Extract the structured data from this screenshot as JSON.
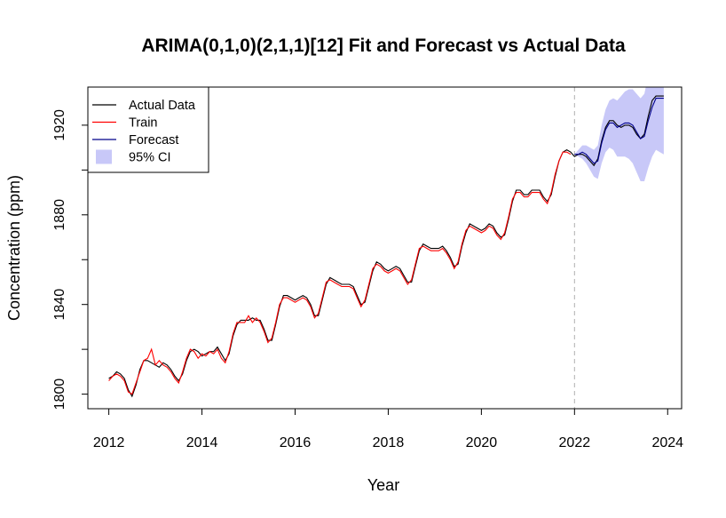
{
  "chart_data": {
    "type": "line",
    "title": "ARIMA(0,1,0)(2,1,1)[12] Fit and Forecast vs Actual Data",
    "xlabel": "Year",
    "ylabel": "Concentration (ppm)",
    "xlim": [
      2011.55,
      2024.3
    ],
    "ylim": [
      1793.5,
      1937
    ],
    "x_ticks": [
      2012,
      2014,
      2016,
      2018,
      2020,
      2022,
      2024
    ],
    "y_ticks": [
      1800,
      1840,
      1880,
      1920
    ],
    "y_minor_ticks": [
      1820,
      1860,
      1900
    ],
    "forecast_start": 2022,
    "grid": false,
    "legend_position": "top-left",
    "legend": [
      {
        "label": "Actual Data",
        "color": "#000000",
        "kind": "line"
      },
      {
        "label": "Train",
        "color": "#ff0000",
        "kind": "line"
      },
      {
        "label": "Forecast",
        "color": "#00008b",
        "kind": "line"
      },
      {
        "label": "95% CI",
        "color": "#c8c8f8",
        "kind": "fill"
      }
    ],
    "series": [
      {
        "name": "Actual Data",
        "color": "#000000",
        "x": [
          2012.0,
          2012.083,
          2012.167,
          2012.25,
          2012.333,
          2012.417,
          2012.5,
          2012.583,
          2012.667,
          2012.75,
          2012.833,
          2012.917,
          2013.0,
          2013.083,
          2013.167,
          2013.25,
          2013.333,
          2013.417,
          2013.5,
          2013.583,
          2013.667,
          2013.75,
          2013.833,
          2013.917,
          2014.0,
          2014.083,
          2014.167,
          2014.25,
          2014.333,
          2014.417,
          2014.5,
          2014.583,
          2014.667,
          2014.75,
          2014.833,
          2014.917,
          2015.0,
          2015.083,
          2015.167,
          2015.25,
          2015.333,
          2015.417,
          2015.5,
          2015.583,
          2015.667,
          2015.75,
          2015.833,
          2015.917,
          2016.0,
          2016.083,
          2016.167,
          2016.25,
          2016.333,
          2016.417,
          2016.5,
          2016.583,
          2016.667,
          2016.75,
          2016.833,
          2016.917,
          2017.0,
          2017.083,
          2017.167,
          2017.25,
          2017.333,
          2017.417,
          2017.5,
          2017.583,
          2017.667,
          2017.75,
          2017.833,
          2017.917,
          2018.0,
          2018.083,
          2018.167,
          2018.25,
          2018.333,
          2018.417,
          2018.5,
          2018.583,
          2018.667,
          2018.75,
          2018.833,
          2018.917,
          2019.0,
          2019.083,
          2019.167,
          2019.25,
          2019.333,
          2019.417,
          2019.5,
          2019.583,
          2019.667,
          2019.75,
          2019.833,
          2019.917,
          2020.0,
          2020.083,
          2020.167,
          2020.25,
          2020.333,
          2020.417,
          2020.5,
          2020.583,
          2020.667,
          2020.75,
          2020.833,
          2020.917,
          2021.0,
          2021.083,
          2021.167,
          2021.25,
          2021.333,
          2021.417,
          2021.5,
          2021.583,
          2021.667,
          2021.75,
          2021.833,
          2021.917,
          2022.0,
          2022.083,
          2022.167,
          2022.25,
          2022.333,
          2022.417,
          2022.5,
          2022.583,
          2022.667,
          2022.75,
          2022.833,
          2022.917,
          2023.0,
          2023.083,
          2023.167,
          2023.25,
          2023.333,
          2023.417,
          2023.5,
          2023.583,
          2023.667,
          2023.75,
          2023.833,
          2023.917
        ],
        "y": [
          1807,
          1808,
          1810,
          1809,
          1807,
          1802,
          1799,
          1804,
          1811,
          1815,
          1815,
          1814,
          1813,
          1812,
          1814,
          1813,
          1811,
          1808,
          1806,
          1809,
          1815,
          1819,
          1820,
          1819,
          1817,
          1818,
          1819,
          1819,
          1821,
          1818,
          1815,
          1818,
          1826,
          1831,
          1833,
          1833,
          1833,
          1834,
          1833,
          1833,
          1829,
          1824,
          1824,
          1831,
          1839,
          1844,
          1844,
          1843,
          1842,
          1843,
          1844,
          1843,
          1840,
          1835,
          1835,
          1842,
          1849,
          1852,
          1851,
          1850,
          1849,
          1849,
          1849,
          1848,
          1844,
          1840,
          1841,
          1848,
          1855,
          1859,
          1858,
          1856,
          1855,
          1856,
          1857,
          1856,
          1853,
          1850,
          1850,
          1857,
          1864,
          1867,
          1866,
          1865,
          1865,
          1865,
          1866,
          1864,
          1861,
          1857,
          1858,
          1866,
          1872,
          1876,
          1875,
          1874,
          1873,
          1874,
          1876,
          1875,
          1872,
          1870,
          1871,
          1878,
          1886,
          1891,
          1891,
          1889,
          1889,
          1891,
          1891,
          1891,
          1888,
          1886,
          1889,
          1897,
          1904,
          1908,
          1909,
          1908,
          1906,
          1907,
          1907,
          1906,
          1904,
          1902,
          1905,
          1913,
          1919,
          1922,
          1922,
          1920,
          1919,
          1920,
          1920,
          1919,
          1916,
          1914,
          1916,
          1924,
          1931,
          1933,
          1933,
          1933
        ]
      },
      {
        "name": "Train",
        "color": "#ff0000",
        "x": [
          2012.0,
          2012.083,
          2012.167,
          2012.25,
          2012.333,
          2012.417,
          2012.5,
          2012.583,
          2012.667,
          2012.75,
          2012.833,
          2012.917,
          2013.0,
          2013.083,
          2013.167,
          2013.25,
          2013.333,
          2013.417,
          2013.5,
          2013.583,
          2013.667,
          2013.75,
          2013.833,
          2013.917,
          2014.0,
          2014.083,
          2014.167,
          2014.25,
          2014.333,
          2014.417,
          2014.5,
          2014.583,
          2014.667,
          2014.75,
          2014.833,
          2014.917,
          2015.0,
          2015.083,
          2015.167,
          2015.25,
          2015.333,
          2015.417,
          2015.5,
          2015.583,
          2015.667,
          2015.75,
          2015.833,
          2015.917,
          2016.0,
          2016.083,
          2016.167,
          2016.25,
          2016.333,
          2016.417,
          2016.5,
          2016.583,
          2016.667,
          2016.75,
          2016.833,
          2016.917,
          2017.0,
          2017.083,
          2017.167,
          2017.25,
          2017.333,
          2017.417,
          2017.5,
          2017.583,
          2017.667,
          2017.75,
          2017.833,
          2017.917,
          2018.0,
          2018.083,
          2018.167,
          2018.25,
          2018.333,
          2018.417,
          2018.5,
          2018.583,
          2018.667,
          2018.75,
          2018.833,
          2018.917,
          2019.0,
          2019.083,
          2019.167,
          2019.25,
          2019.333,
          2019.417,
          2019.5,
          2019.583,
          2019.667,
          2019.75,
          2019.833,
          2019.917,
          2020.0,
          2020.083,
          2020.167,
          2020.25,
          2020.333,
          2020.417,
          2020.5,
          2020.583,
          2020.667,
          2020.75,
          2020.833,
          2020.917,
          2021.0,
          2021.083,
          2021.167,
          2021.25,
          2021.333,
          2021.417,
          2021.5,
          2021.583,
          2021.667,
          2021.75,
          2021.833,
          2021.917
        ],
        "y": [
          1806,
          1808,
          1809,
          1808,
          1806,
          1801,
          1800,
          1805,
          1810,
          1815,
          1816,
          1820,
          1813,
          1815,
          1813,
          1812,
          1810,
          1807,
          1805,
          1810,
          1816,
          1820,
          1819,
          1816,
          1818,
          1817,
          1819,
          1818,
          1820,
          1816,
          1814,
          1819,
          1827,
          1832,
          1832,
          1832,
          1835,
          1832,
          1834,
          1832,
          1828,
          1823,
          1825,
          1832,
          1840,
          1843,
          1843,
          1842,
          1841,
          1842,
          1843,
          1842,
          1839,
          1834,
          1836,
          1843,
          1850,
          1851,
          1850,
          1849,
          1848,
          1848,
          1848,
          1847,
          1843,
          1839,
          1842,
          1849,
          1856,
          1858,
          1857,
          1855,
          1854,
          1855,
          1856,
          1855,
          1852,
          1849,
          1851,
          1858,
          1865,
          1866,
          1865,
          1864,
          1864,
          1864,
          1865,
          1863,
          1860,
          1856,
          1859,
          1867,
          1873,
          1875,
          1874,
          1873,
          1872,
          1873,
          1875,
          1874,
          1871,
          1869,
          1872,
          1879,
          1887,
          1890,
          1890,
          1888,
          1888,
          1890,
          1890,
          1890,
          1887,
          1885,
          1890,
          1898,
          1904,
          1908,
          1908,
          1907
        ]
      },
      {
        "name": "Forecast",
        "color": "#00008b",
        "x": [
          2022.0,
          2022.083,
          2022.167,
          2022.25,
          2022.333,
          2022.417,
          2022.5,
          2022.583,
          2022.667,
          2022.75,
          2022.833,
          2022.917,
          2023.0,
          2023.083,
          2023.167,
          2023.25,
          2023.333,
          2023.417,
          2023.5,
          2023.583,
          2023.667,
          2023.75,
          2023.833,
          2023.917
        ],
        "y": [
          1907,
          1907,
          1908,
          1907,
          1905,
          1903,
          1904,
          1912,
          1918,
          1921,
          1921,
          1919,
          1920,
          1921,
          1921,
          1920,
          1917,
          1914,
          1915,
          1922,
          1928,
          1932,
          1932,
          1932
        ]
      }
    ],
    "ci": {
      "name": "95% CI",
      "color": "#c8c8f8",
      "x": [
        2022.0,
        2022.083,
        2022.167,
        2022.25,
        2022.333,
        2022.417,
        2022.5,
        2022.583,
        2022.667,
        2022.75,
        2022.833,
        2022.917,
        2023.0,
        2023.083,
        2023.167,
        2023.25,
        2023.333,
        2023.417,
        2023.5,
        2023.583,
        2023.667,
        2023.75,
        2023.833,
        2023.917
      ],
      "lower": [
        1907,
        1906,
        1905,
        1903,
        1900,
        1897,
        1896,
        1903,
        1908,
        1910,
        1909,
        1906,
        1906,
        1906,
        1905,
        1903,
        1899,
        1895,
        1895,
        1901,
        1906,
        1909,
        1908,
        1907
      ],
      "upper": [
        1907,
        1909,
        1911,
        1911,
        1910,
        1909,
        1911,
        1920,
        1927,
        1931,
        1932,
        1931,
        1933,
        1935,
        1936,
        1936,
        1934,
        1932,
        1934,
        1942,
        1949,
        1954,
        1955,
        1956
      ]
    }
  }
}
